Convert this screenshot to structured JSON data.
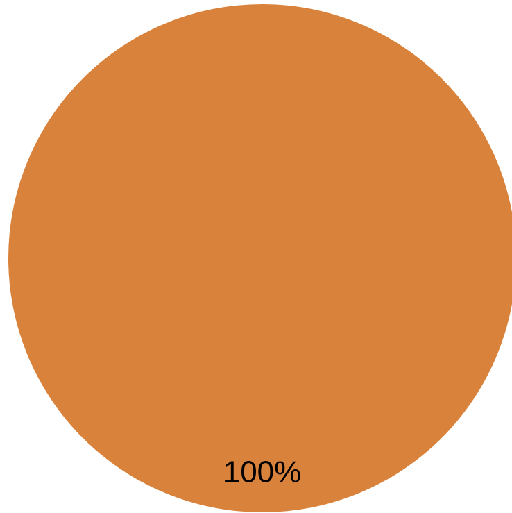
{
  "chart_data": {
    "type": "pie",
    "categories": [
      ""
    ],
    "values": [
      100
    ],
    "data_labels": [
      "100%"
    ],
    "colors": [
      "#d9823b"
    ],
    "title": "",
    "legend": false
  }
}
